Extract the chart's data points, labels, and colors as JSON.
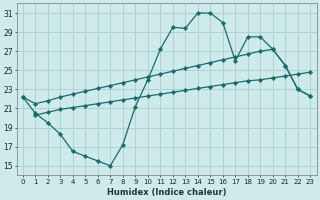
{
  "xlabel": "Humidex (Indice chaleur)",
  "bg_color": "#ceeaea",
  "grid_color": "#aacfcf",
  "line_color": "#1a6b6b",
  "xlim": [
    -0.5,
    23.5
  ],
  "ylim": [
    14,
    32
  ],
  "xticks": [
    0,
    1,
    2,
    3,
    4,
    5,
    6,
    7,
    8,
    9,
    10,
    11,
    12,
    13,
    14,
    15,
    16,
    17,
    18,
    19,
    20,
    21,
    22,
    23
  ],
  "yticks": [
    15,
    17,
    19,
    21,
    23,
    25,
    27,
    29,
    31
  ],
  "line1_x": [
    0,
    1,
    2,
    3,
    4,
    5,
    6,
    7,
    8,
    9,
    10,
    11,
    12,
    13,
    14,
    15,
    16,
    17,
    18,
    19,
    20,
    21,
    22,
    23
  ],
  "line1_y": [
    22.2,
    20.5,
    19.5,
    18.3,
    16.5,
    16.0,
    15.5,
    15.0,
    17.2,
    21.2,
    24.0,
    27.2,
    29.5,
    29.4,
    31.0,
    31.0,
    30.0,
    26.0,
    28.5,
    28.5,
    27.2,
    25.5,
    23.0,
    22.3
  ],
  "line2_x": [
    0,
    1,
    2,
    3,
    4,
    5,
    6,
    7,
    8,
    9,
    10,
    11,
    12,
    13,
    14,
    15,
    16,
    17,
    18,
    19,
    20,
    21,
    22,
    23
  ],
  "line2_y": [
    22.2,
    21.5,
    21.8,
    22.2,
    22.5,
    22.8,
    23.1,
    23.4,
    23.7,
    24.0,
    24.3,
    24.6,
    24.9,
    25.2,
    25.5,
    25.8,
    26.1,
    26.4,
    26.7,
    27.0,
    27.2,
    25.5,
    23.0,
    22.3
  ],
  "line3_x": [
    1,
    2,
    3,
    4,
    5,
    6,
    7,
    8,
    9,
    10,
    11,
    12,
    13,
    14,
    15,
    16,
    17,
    18,
    19,
    20,
    21,
    22,
    23
  ],
  "line3_y": [
    20.3,
    20.6,
    20.9,
    21.1,
    21.3,
    21.5,
    21.7,
    21.9,
    22.1,
    22.3,
    22.5,
    22.7,
    22.9,
    23.1,
    23.3,
    23.5,
    23.7,
    23.9,
    24.0,
    24.2,
    24.4,
    24.6,
    24.8
  ]
}
